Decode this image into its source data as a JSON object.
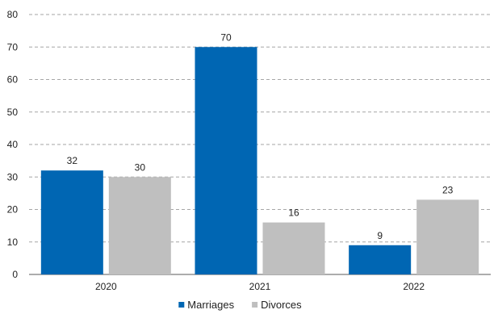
{
  "chart_data": {
    "type": "bar",
    "title": "",
    "xlabel": "",
    "ylabel": "",
    "categories": [
      "2020",
      "2021",
      "2022"
    ],
    "series": [
      {
        "name": "Marriages",
        "values": [
          32,
          70,
          9
        ],
        "color": "#0066b3"
      },
      {
        "name": "Divorces",
        "values": [
          30,
          16,
          23
        ],
        "color": "#bfbfbf"
      }
    ],
    "ylim": [
      0,
      80
    ],
    "yticks": [
      0,
      10,
      20,
      30,
      40,
      50,
      60,
      70,
      80
    ],
    "grid": true,
    "data_labels": true,
    "legend_position": "bottom"
  }
}
